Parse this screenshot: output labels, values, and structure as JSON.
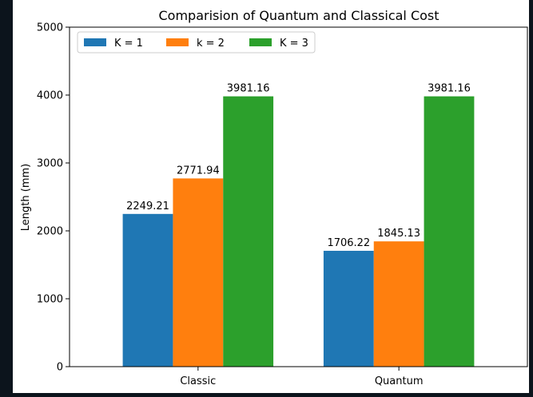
{
  "chart_data": {
    "type": "bar",
    "title": "Comparision of Quantum and Classical Cost",
    "xlabel": "",
    "ylabel": "Length (mm)",
    "categories": [
      "Classic",
      "Quantum"
    ],
    "series": [
      {
        "name": "K = 1",
        "values": [
          2249.21,
          1706.22
        ],
        "color": "#1f77b4"
      },
      {
        "name": "k = 2",
        "values": [
          2771.94,
          1845.13
        ],
        "color": "#ff7f0e"
      },
      {
        "name": "K = 3",
        "values": [
          3981.16,
          3981.16
        ],
        "color": "#2ca02c"
      }
    ],
    "ylim": [
      0,
      5000
    ],
    "yticks": [
      0,
      1000,
      2000,
      3000,
      4000,
      5000
    ],
    "data_labels": [
      [
        "2249.21",
        "1706.22"
      ],
      [
        "2771.94",
        "1845.13"
      ],
      [
        "3981.16",
        "3981.16"
      ]
    ],
    "legend_position": "top-left",
    "legend_columns": 3,
    "grid": false
  }
}
